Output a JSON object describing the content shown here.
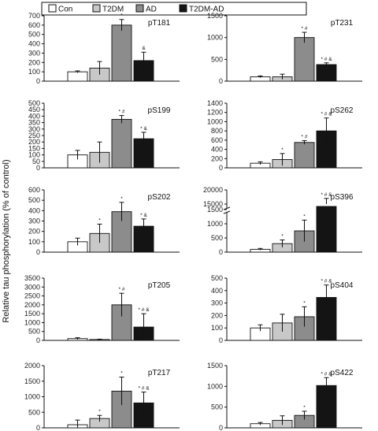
{
  "colors": {
    "Con": "#ffffff",
    "T2DM": "#c8c8c8",
    "AD": "#8c8c8c",
    "T2DM-AD": "#141414"
  },
  "legend": [
    "Con",
    "T2DM",
    "AD",
    "T2DM-AD"
  ],
  "y_axis_label": "Relative tau phosphorylation (% of control)",
  "chart_data": [
    {
      "type": "bar",
      "title": "pT181",
      "categories": [
        "Con",
        "T2DM",
        "AD",
        "T2DM-AD"
      ],
      "values": [
        100,
        140,
        600,
        220
      ],
      "errors": [
        10,
        70,
        60,
        90
      ],
      "significance": [
        "",
        "",
        "*",
        "&"
      ],
      "ylim": [
        0,
        700
      ],
      "yticks": [
        0,
        100,
        200,
        300,
        400,
        500,
        600,
        700
      ]
    },
    {
      "type": "bar",
      "title": "pT231",
      "categories": [
        "Con",
        "T2DM",
        "AD",
        "T2DM-AD"
      ],
      "values": [
        100,
        100,
        1000,
        380
      ],
      "errors": [
        20,
        60,
        120,
        40
      ],
      "significance": [
        "",
        "",
        "* #",
        "* # &"
      ],
      "ylim": [
        0,
        1500
      ],
      "yticks": [
        0,
        500,
        1000,
        1500
      ]
    },
    {
      "type": "bar",
      "title": "pS199",
      "categories": [
        "Con",
        "T2DM",
        "AD",
        "T2DM-AD"
      ],
      "values": [
        100,
        120,
        375,
        225
      ],
      "errors": [
        35,
        80,
        30,
        50
      ],
      "significance": [
        "",
        "",
        "* #",
        "* &"
      ],
      "ylim": [
        0,
        500
      ],
      "yticks": [
        0,
        50,
        100,
        150,
        200,
        250,
        300,
        350,
        400,
        450,
        500
      ]
    },
    {
      "type": "bar",
      "title": "pS262",
      "categories": [
        "Con",
        "T2DM",
        "AD",
        "T2DM-AD"
      ],
      "values": [
        100,
        180,
        550,
        800
      ],
      "errors": [
        30,
        130,
        40,
        280
      ],
      "significance": [
        "",
        "*",
        "* #",
        "* # &"
      ],
      "ylim": [
        0,
        1400
      ],
      "yticks": [
        0,
        200,
        400,
        600,
        800,
        1000,
        1200,
        1400
      ]
    },
    {
      "type": "bar",
      "title": "pS202",
      "categories": [
        "Con",
        "T2DM",
        "AD",
        "T2DM-AD"
      ],
      "values": [
        100,
        180,
        390,
        250
      ],
      "errors": [
        35,
        90,
        90,
        70
      ],
      "significance": [
        "",
        "*",
        "*",
        "* &"
      ],
      "ylim": [
        0,
        600
      ],
      "yticks": [
        0,
        100,
        200,
        300,
        400,
        500,
        600
      ]
    },
    {
      "type": "bar",
      "title": "pS396",
      "categories": [
        "Con",
        "T2DM",
        "AD",
        "T2DM-AD"
      ],
      "values": [
        100,
        300,
        750,
        15000
      ],
      "errors": [
        30,
        130,
        380,
        2000
      ],
      "significance": [
        "",
        "*",
        "*",
        "* # &"
      ],
      "axis_break": true,
      "lower_ylim": [
        0,
        1500
      ],
      "lower_yticks": [
        0,
        500,
        1000,
        1500
      ],
      "upper_ylim": [
        15000,
        20000
      ],
      "upper_yticks": [
        15000,
        20000
      ]
    },
    {
      "type": "bar",
      "title": "pT205",
      "categories": [
        "Con",
        "T2DM",
        "AD",
        "T2DM-AD"
      ],
      "values": [
        100,
        50,
        2000,
        750
      ],
      "errors": [
        50,
        20,
        650,
        750
      ],
      "significance": [
        "",
        "",
        "* #",
        "* # &"
      ],
      "ylim": [
        0,
        3500
      ],
      "yticks": [
        0,
        500,
        1000,
        1500,
        2000,
        2500,
        3000,
        3500
      ]
    },
    {
      "type": "bar",
      "title": "pS404",
      "categories": [
        "Con",
        "T2DM",
        "AD",
        "T2DM-AD"
      ],
      "values": [
        100,
        140,
        190,
        345
      ],
      "errors": [
        25,
        70,
        80,
        100
      ],
      "significance": [
        "",
        "",
        "*",
        "* # &"
      ],
      "ylim": [
        0,
        500
      ],
      "yticks": [
        0,
        100,
        200,
        300,
        400,
        500
      ]
    },
    {
      "type": "bar",
      "title": "pT217",
      "categories": [
        "Con",
        "T2DM",
        "AD",
        "T2DM-AD"
      ],
      "values": [
        100,
        300,
        1180,
        800
      ],
      "errors": [
        150,
        100,
        450,
        350
      ],
      "significance": [
        "",
        "*",
        "*",
        "* # &"
      ],
      "ylim": [
        0,
        2000
      ],
      "yticks": [
        0,
        500,
        1000,
        1500,
        2000
      ]
    },
    {
      "type": "bar",
      "title": "pS422",
      "categories": [
        "Con",
        "T2DM",
        "AD",
        "T2DM-AD"
      ],
      "values": [
        100,
        180,
        300,
        1020
      ],
      "errors": [
        30,
        110,
        100,
        190
      ],
      "significance": [
        "",
        "",
        "*",
        "* # &"
      ],
      "ylim": [
        0,
        1500
      ],
      "yticks": [
        0,
        500,
        1000,
        1500
      ]
    }
  ]
}
